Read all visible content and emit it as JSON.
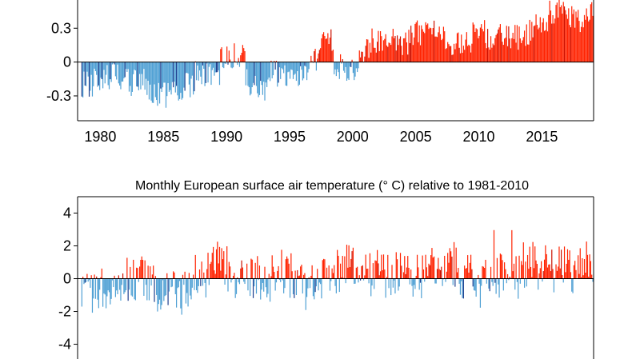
{
  "colors": {
    "warm": "#ff2200",
    "warm_dark": "#cc1100",
    "cool": "#4fa0d4",
    "cool_dark": "#1e3f8f",
    "axis": "#000000"
  },
  "chart_data": [
    {
      "id": "top",
      "type": "bar",
      "title": "",
      "xlabel": "",
      "ylabel": "",
      "x_range": [
        1978.7,
        2019.6
      ],
      "ylim": [
        -0.52,
        0.55
      ],
      "y_ticks": [
        0.3,
        0,
        -0.3
      ],
      "y_tick_labels": [
        "0.3",
        "0",
        "-0.3"
      ],
      "x_ticks": [
        1980,
        1985,
        1990,
        1995,
        2000,
        2005,
        2010,
        2015
      ],
      "x_tick_labels": [
        "1980",
        "1985",
        "1990",
        "1995",
        "2000",
        "2005",
        "2010",
        "2015"
      ],
      "annual": [
        {
          "year": 1979,
          "mean": -0.2
        },
        {
          "year": 1980,
          "mean": -0.14
        },
        {
          "year": 1981,
          "mean": -0.13
        },
        {
          "year": 1982,
          "mean": -0.18
        },
        {
          "year": 1983,
          "mean": -0.16
        },
        {
          "year": 1984,
          "mean": -0.26
        },
        {
          "year": 1985,
          "mean": -0.3
        },
        {
          "year": 1986,
          "mean": -0.26
        },
        {
          "year": 1987,
          "mean": -0.2
        },
        {
          "year": 1988,
          "mean": -0.1
        },
        {
          "year": 1989,
          "mean": -0.1
        },
        {
          "year": 1990,
          "mean": 0.05
        },
        {
          "year": 1991,
          "mean": 0.05
        },
        {
          "year": 1992,
          "mean": -0.18
        },
        {
          "year": 1993,
          "mean": -0.25
        },
        {
          "year": 1994,
          "mean": -0.1
        },
        {
          "year": 1995,
          "mean": -0.1
        },
        {
          "year": 1996,
          "mean": -0.12
        },
        {
          "year": 1997,
          "mean": 0.02
        },
        {
          "year": 1998,
          "mean": 0.2
        },
        {
          "year": 1999,
          "mean": -0.04
        },
        {
          "year": 2000,
          "mean": -0.06
        },
        {
          "year": 2001,
          "mean": 0.12
        },
        {
          "year": 2002,
          "mean": 0.18
        },
        {
          "year": 2003,
          "mean": 0.2
        },
        {
          "year": 2004,
          "mean": 0.17
        },
        {
          "year": 2005,
          "mean": 0.25
        },
        {
          "year": 2006,
          "mean": 0.25
        },
        {
          "year": 2007,
          "mean": 0.23
        },
        {
          "year": 2008,
          "mean": 0.16
        },
        {
          "year": 2009,
          "mean": 0.18
        },
        {
          "year": 2010,
          "mean": 0.26
        },
        {
          "year": 2011,
          "mean": 0.2
        },
        {
          "year": 2012,
          "mean": 0.22
        },
        {
          "year": 2013,
          "mean": 0.22
        },
        {
          "year": 2014,
          "mean": 0.26
        },
        {
          "year": 2015,
          "mean": 0.35
        },
        {
          "year": 2016,
          "mean": 0.45
        },
        {
          "year": 2017,
          "mean": 0.42
        },
        {
          "year": 2018,
          "mean": 0.4
        },
        {
          "year": 2019,
          "mean": 0.45
        }
      ]
    },
    {
      "id": "bottom",
      "type": "bar",
      "title": "Monthly  European surface air temperature (° C) relative to 1981-2010",
      "xlabel": "",
      "ylabel": "",
      "x_range": [
        1978.7,
        2019.6
      ],
      "ylim": [
        -4.9,
        5.0
      ],
      "y_ticks": [
        4,
        2,
        0,
        -2,
        -4
      ],
      "y_tick_labels": [
        "4",
        "2",
        "0",
        "-2",
        "-4"
      ],
      "annual": [
        {
          "year": 1979,
          "mean": -0.9
        },
        {
          "year": 1980,
          "mean": -0.6
        },
        {
          "year": 1981,
          "mean": -0.2
        },
        {
          "year": 1982,
          "mean": 0.0
        },
        {
          "year": 1983,
          "mean": 0.1
        },
        {
          "year": 1984,
          "mean": -0.3
        },
        {
          "year": 1985,
          "mean": -1.0
        },
        {
          "year": 1986,
          "mean": -0.7
        },
        {
          "year": 1987,
          "mean": -0.8
        },
        {
          "year": 1988,
          "mean": 0.2
        },
        {
          "year": 1989,
          "mean": 0.8
        },
        {
          "year": 1990,
          "mean": 0.5
        },
        {
          "year": 1991,
          "mean": -0.2
        },
        {
          "year": 1992,
          "mean": 0.2
        },
        {
          "year": 1993,
          "mean": -0.2
        },
        {
          "year": 1994,
          "mean": 0.4
        },
        {
          "year": 1995,
          "mean": 0.2
        },
        {
          "year": 1996,
          "mean": -0.5
        },
        {
          "year": 1997,
          "mean": 0.1
        },
        {
          "year": 1998,
          "mean": 0.1
        },
        {
          "year": 1999,
          "mean": 0.4
        },
        {
          "year": 2000,
          "mean": 0.6
        },
        {
          "year": 2001,
          "mean": 0.2
        },
        {
          "year": 2002,
          "mean": 0.4
        },
        {
          "year": 2003,
          "mean": 0.2
        },
        {
          "year": 2004,
          "mean": 0.1
        },
        {
          "year": 2005,
          "mean": 0.0
        },
        {
          "year": 2006,
          "mean": 0.5
        },
        {
          "year": 2007,
          "mean": 0.6
        },
        {
          "year": 2008,
          "mean": 0.5
        },
        {
          "year": 2009,
          "mean": 0.2
        },
        {
          "year": 2010,
          "mean": -0.3
        },
        {
          "year": 2011,
          "mean": 0.5
        },
        {
          "year": 2012,
          "mean": 0.3
        },
        {
          "year": 2013,
          "mean": 0.2
        },
        {
          "year": 2014,
          "mean": 0.9
        },
        {
          "year": 2015,
          "mean": 0.8
        },
        {
          "year": 2016,
          "mean": 0.6
        },
        {
          "year": 2017,
          "mean": 0.6
        },
        {
          "year": 2018,
          "mean": 0.9
        },
        {
          "year": 2019,
          "mean": 0.9
        }
      ]
    }
  ]
}
